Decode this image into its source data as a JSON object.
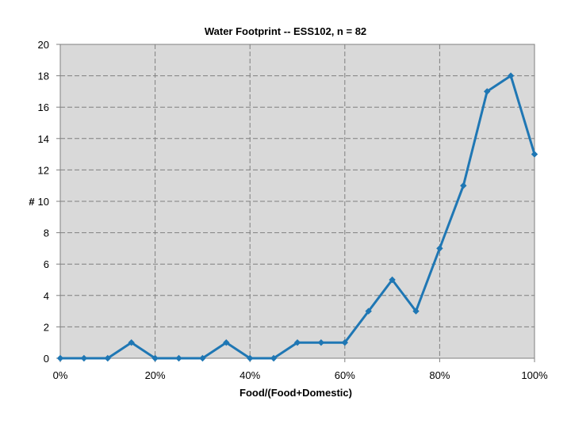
{
  "chart_data": {
    "type": "line",
    "title": "Water Footprint -- ESS102, n = 82",
    "xlabel": "Food/(Food+Domestic)",
    "ylabel": "#",
    "x": [
      0,
      5,
      10,
      15,
      20,
      25,
      30,
      35,
      40,
      45,
      50,
      55,
      60,
      65,
      70,
      75,
      80,
      85,
      90,
      95,
      100
    ],
    "series": [
      {
        "values": [
          0,
          0,
          0,
          1,
          0,
          0,
          0,
          1,
          0,
          0,
          1,
          1,
          1,
          3,
          5,
          3,
          7,
          11,
          17,
          18,
          13
        ]
      }
    ],
    "xlim": [
      0,
      100
    ],
    "ylim": [
      0,
      20
    ],
    "x_ticks": [
      0,
      20,
      40,
      60,
      80,
      100
    ],
    "x_tick_labels": [
      "0%",
      "20%",
      "40%",
      "60%",
      "80%",
      "100%"
    ],
    "y_ticks": [
      0,
      2,
      4,
      6,
      8,
      10,
      12,
      14,
      16,
      18,
      20
    ],
    "y_tick_labels": [
      "0",
      "2",
      "4",
      "6",
      "8",
      "10",
      "12",
      "14",
      "16",
      "18",
      "20"
    ],
    "grid": true,
    "colors": {
      "line": "#1f77b4",
      "plot_background": "#d9d9d9",
      "grid": "#808080"
    }
  }
}
